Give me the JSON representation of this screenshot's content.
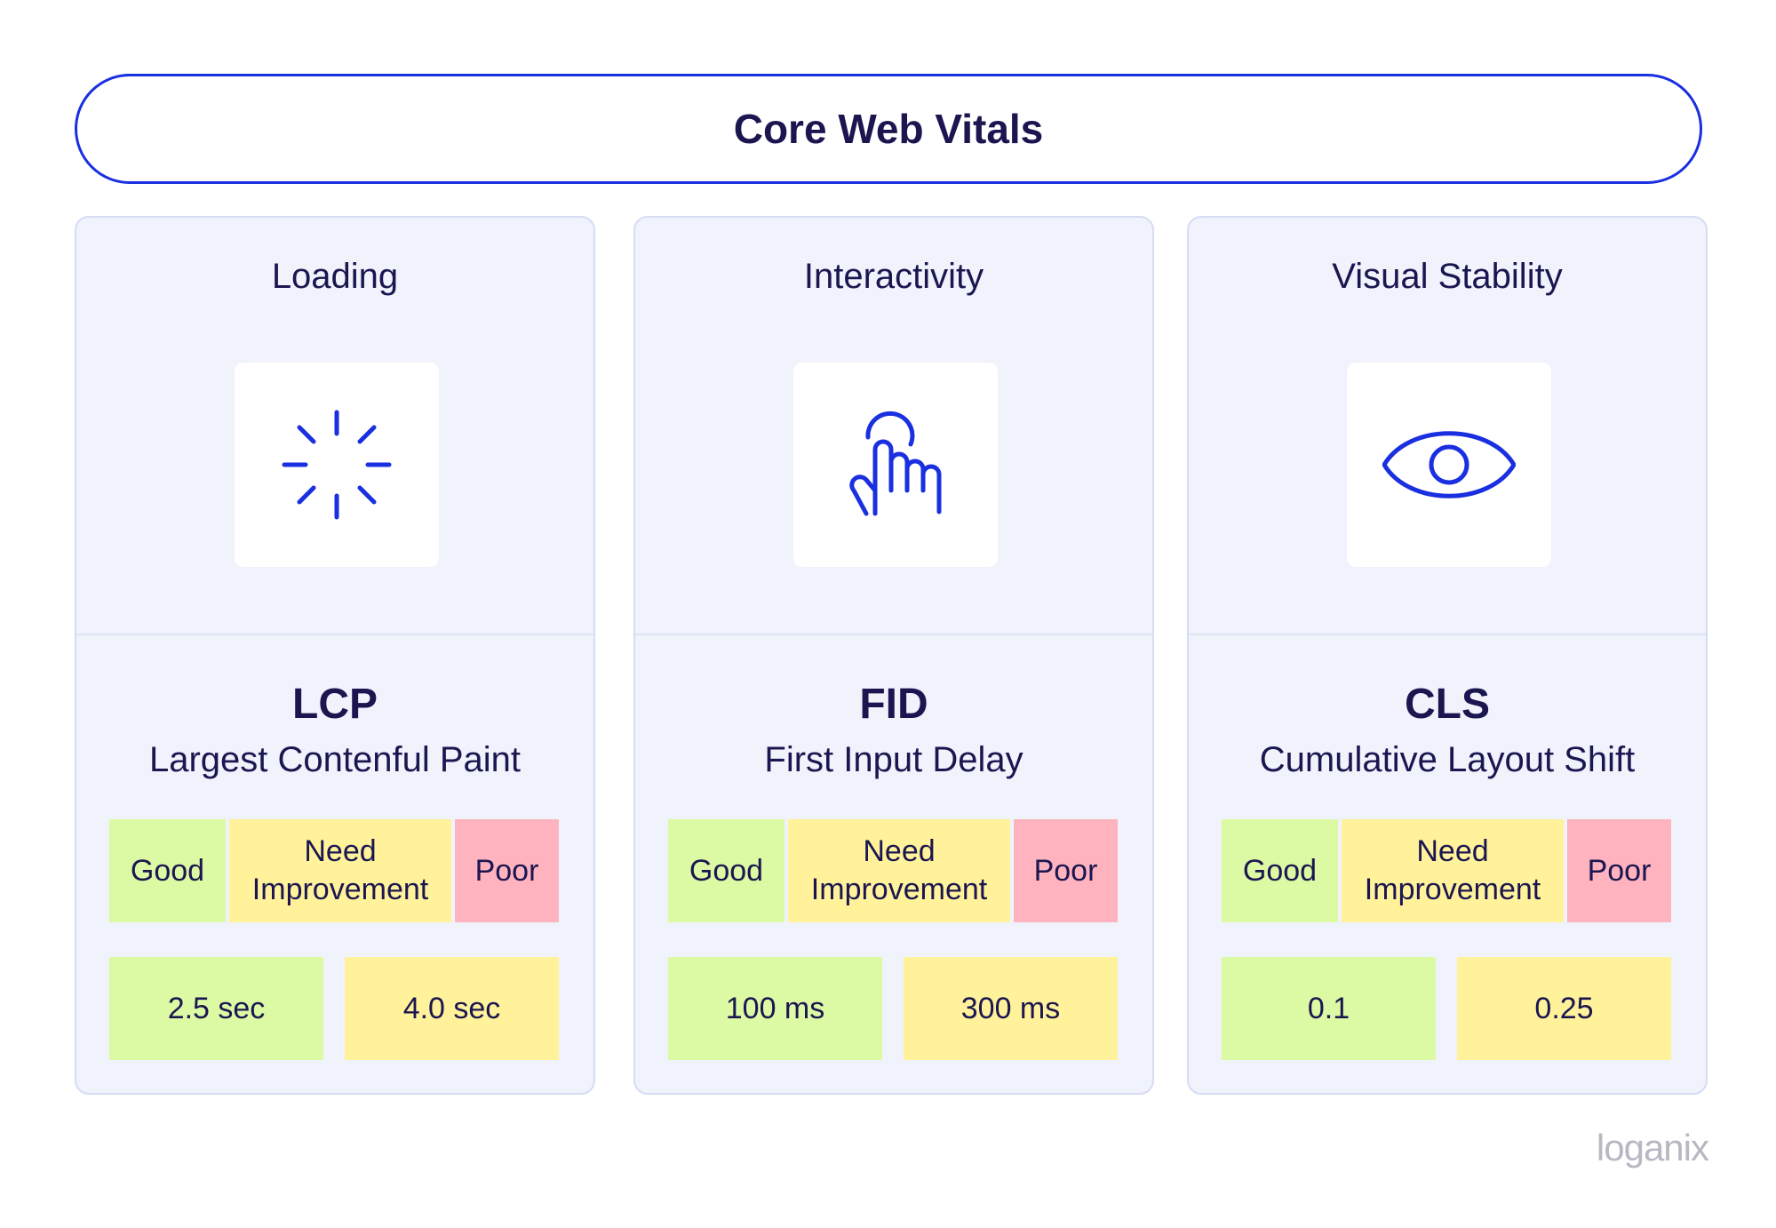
{
  "title": "Core Web Vitals",
  "colors": {
    "accent_blue": "#1a2fe0",
    "text_navy": "#1b1650",
    "card_bg": "#f0f3fc",
    "good": "#dcf9a3",
    "need_improvement": "#fff29a",
    "poor": "#ffb3be"
  },
  "cards": [
    {
      "category": "Loading",
      "icon": "loading-spinner-icon",
      "abbr": "LCP",
      "name": "Largest Contenful Paint",
      "ratings": {
        "good": "Good",
        "need": "Need Improvement",
        "poor": "Poor"
      },
      "thresholds": [
        "2.5 sec",
        "4.0 sec"
      ]
    },
    {
      "category": "Interactivity",
      "icon": "pointer-hand-icon",
      "abbr": "FID",
      "name": "First Input Delay",
      "ratings": {
        "good": "Good",
        "need": "Need Improvement",
        "poor": "Poor"
      },
      "thresholds": [
        "100 ms",
        "300 ms"
      ]
    },
    {
      "category": "Visual Stability",
      "icon": "eye-icon",
      "abbr": "CLS",
      "name": "Cumulative Layout Shift",
      "ratings": {
        "good": "Good",
        "need": "Need Improvement",
        "poor": "Poor"
      },
      "thresholds": [
        "0.1",
        "0.25"
      ]
    }
  ],
  "brand": "loganix"
}
